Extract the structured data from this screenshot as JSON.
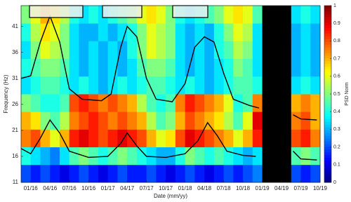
{
  "chart_data": {
    "type": "heatmap",
    "colormap": "jet",
    "missing_color": "#000000",
    "xlabel": "Date (mm/yy)",
    "ylabel": "Frequency (Hz)",
    "xlim": [
      -1.5,
      45
    ],
    "ylim": [
      11,
      45
    ],
    "xticks": [
      {
        "value": 0,
        "label": "01/16"
      },
      {
        "value": 3,
        "label": "04/16"
      },
      {
        "value": 6,
        "label": "07/16"
      },
      {
        "value": 9,
        "label": "10/16"
      },
      {
        "value": 12,
        "label": "01/17"
      },
      {
        "value": 15,
        "label": "04/17"
      },
      {
        "value": 18,
        "label": "07/17"
      },
      {
        "value": 21,
        "label": "10/17"
      },
      {
        "value": 24,
        "label": "01/18"
      },
      {
        "value": 27,
        "label": "04/18"
      },
      {
        "value": 30,
        "label": "07/18"
      },
      {
        "value": 33,
        "label": "10/18"
      },
      {
        "value": 36,
        "label": "01/19"
      },
      {
        "value": 39,
        "label": "04/19"
      },
      {
        "value": 42,
        "label": "07/19"
      },
      {
        "value": 45,
        "label": "10/19"
      }
    ],
    "yticks": [
      11,
      16,
      21,
      26,
      31,
      36,
      41
    ],
    "x_bins": [
      -1.5,
      0,
      1.5,
      3,
      4.5,
      6,
      7.5,
      9,
      10.5,
      12,
      13.5,
      15,
      16.5,
      18,
      19.5,
      21,
      22.5,
      24,
      25.5,
      27,
      28.5,
      30,
      31.5,
      33,
      34.5,
      36,
      37.5,
      39,
      40.5,
      42,
      43.5,
      45
    ],
    "y_bins": [
      11,
      14.4,
      17.8,
      21.2,
      24.6,
      28,
      31.4,
      34.8,
      38.2,
      41.6,
      45
    ],
    "z": [
      [
        0.2,
        0.15,
        0.2,
        0.15,
        0.1,
        0.15,
        0.2,
        0.15,
        0.1,
        0.15,
        0.2,
        0.15,
        0.15,
        0.2,
        0.15,
        0.1,
        0.15,
        0.2,
        0.15,
        0.1,
        0.15,
        0.2,
        0.15,
        0.2,
        0.25,
        null,
        null,
        null,
        0.2,
        0.15,
        0.2
      ],
      [
        0.4,
        0.35,
        0.3,
        0.25,
        0.35,
        0.45,
        0.5,
        0.45,
        0.4,
        0.45,
        0.5,
        0.45,
        0.4,
        0.35,
        0.3,
        0.3,
        0.4,
        0.5,
        0.45,
        0.4,
        0.45,
        0.4,
        0.35,
        0.3,
        0.35,
        null,
        null,
        null,
        0.45,
        0.5,
        0.45
      ],
      [
        0.75,
        0.8,
        0.7,
        0.6,
        0.7,
        0.85,
        0.9,
        0.85,
        0.8,
        0.85,
        0.9,
        0.85,
        0.8,
        0.7,
        0.6,
        0.65,
        0.8,
        0.9,
        0.85,
        0.8,
        0.75,
        0.7,
        0.6,
        0.7,
        0.85,
        null,
        null,
        null,
        0.8,
        0.85,
        0.75
      ],
      [
        0.7,
        0.65,
        0.5,
        0.45,
        0.55,
        0.75,
        0.8,
        0.85,
        0.8,
        0.75,
        0.8,
        0.75,
        0.7,
        0.55,
        0.45,
        0.5,
        0.7,
        0.8,
        0.75,
        0.7,
        0.65,
        0.55,
        0.45,
        0.6,
        0.9,
        null,
        null,
        null,
        0.75,
        0.8,
        0.7
      ],
      [
        0.5,
        0.45,
        0.4,
        0.4,
        0.45,
        0.8,
        0.85,
        0.8,
        0.75,
        0.8,
        0.75,
        0.7,
        0.55,
        0.45,
        0.4,
        0.45,
        0.75,
        0.85,
        0.8,
        0.75,
        0.7,
        0.6,
        0.4,
        0.45,
        0.75,
        null,
        null,
        null,
        0.7,
        0.75,
        0.7
      ],
      [
        0.35,
        0.4,
        0.45,
        0.45,
        0.4,
        0.35,
        0.4,
        0.35,
        0.3,
        0.35,
        0.4,
        0.35,
        0.4,
        0.45,
        0.45,
        0.4,
        0.35,
        0.4,
        0.35,
        0.3,
        0.35,
        0.4,
        0.45,
        0.45,
        0.4,
        null,
        null,
        null,
        0.35,
        0.4,
        0.35
      ],
      [
        0.4,
        0.45,
        0.5,
        0.5,
        0.45,
        0.35,
        0.3,
        0.35,
        0.3,
        0.35,
        0.3,
        0.35,
        0.45,
        0.5,
        0.5,
        0.45,
        0.35,
        0.3,
        0.35,
        0.3,
        0.35,
        0.4,
        0.5,
        0.45,
        0.35,
        null,
        null,
        null,
        0.3,
        0.35,
        0.3
      ],
      [
        0.35,
        0.5,
        0.6,
        0.55,
        0.5,
        0.35,
        0.3,
        0.35,
        0.3,
        0.35,
        0.3,
        0.4,
        0.5,
        0.6,
        0.55,
        0.5,
        0.35,
        0.3,
        0.35,
        0.3,
        0.4,
        0.45,
        0.55,
        0.5,
        0.35,
        null,
        null,
        null,
        0.3,
        0.35,
        0.3
      ],
      [
        0.4,
        0.55,
        0.65,
        0.6,
        0.5,
        0.35,
        0.3,
        0.3,
        0.35,
        0.3,
        0.35,
        0.4,
        0.5,
        0.6,
        0.55,
        0.5,
        0.35,
        0.3,
        0.35,
        0.3,
        0.4,
        0.5,
        0.6,
        0.55,
        0.35,
        null,
        null,
        null,
        0.3,
        0.35,
        0.3
      ],
      [
        0.5,
        0.6,
        0.7,
        0.65,
        0.55,
        0.4,
        0.35,
        0.4,
        0.35,
        0.4,
        0.45,
        0.5,
        0.6,
        0.65,
        0.6,
        0.5,
        0.4,
        0.35,
        0.4,
        0.45,
        0.5,
        0.6,
        0.65,
        0.6,
        0.45,
        null,
        null,
        null,
        0.35,
        0.4,
        0.35
      ]
    ],
    "series": [
      {
        "color": "#000000",
        "x": [
          -1.5,
          0,
          1.5,
          3,
          4.5,
          6,
          8,
          11,
          12.5,
          14,
          15,
          16.5,
          18,
          19.5,
          22,
          24,
          25.5,
          27,
          28.5,
          30,
          31.5,
          34,
          35.5,
          38,
          40.8,
          42,
          44.5
        ],
        "values": [
          31,
          31.5,
          38,
          43,
          38,
          29,
          27,
          26.7,
          28,
          37,
          41,
          39,
          31,
          27,
          26.5,
          30,
          37,
          39,
          38,
          32,
          27,
          25.8,
          25.3,
          null,
          24,
          23.2,
          23
        ]
      },
      {
        "color": "#000000",
        "x": [
          -1.5,
          0,
          1.5,
          3,
          4.5,
          6,
          9,
          12,
          14,
          15,
          16.5,
          18,
          21,
          24,
          26,
          27.5,
          29,
          30.5,
          33,
          35,
          38,
          40.8,
          42,
          44.5
        ],
        "values": [
          17.5,
          16.5,
          19.5,
          23,
          20.5,
          17,
          15.8,
          16,
          18.5,
          20.5,
          18,
          16,
          15.8,
          16.5,
          19,
          22.5,
          20,
          17,
          16.2,
          16,
          null,
          17,
          15.5,
          15.3
        ]
      }
    ],
    "colorbar": {
      "label": "PSD Norm",
      "lim": [
        0,
        1
      ],
      "ticks": [
        0,
        0.1,
        0.2,
        0.3,
        0.4,
        0.5,
        0.6,
        0.7,
        0.8,
        0.9,
        1
      ]
    }
  }
}
